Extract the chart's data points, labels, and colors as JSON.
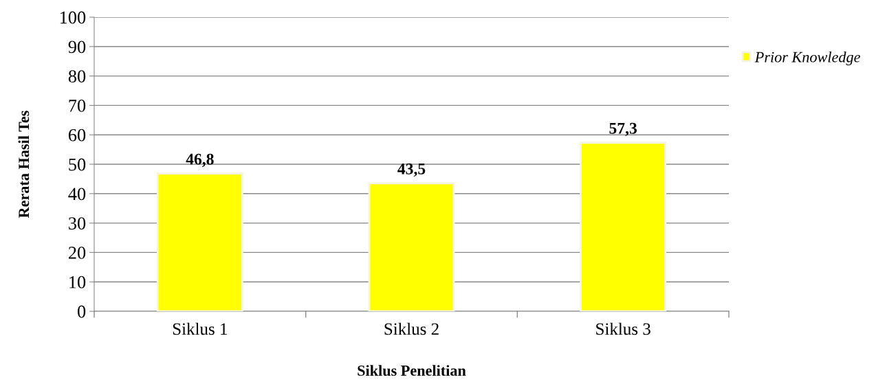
{
  "chart_data": {
    "type": "bar",
    "xlabel": "Siklus Penelitian",
    "ylabel": "Rerata Hasil Tes",
    "categories": [
      "Siklus 1",
      "Siklus 2",
      "Siklus 3"
    ],
    "series": [
      {
        "name": "Prior Knowledge",
        "color": "#ffff00",
        "values": [
          46.8,
          43.5,
          57.3
        ],
        "value_labels": [
          "46,8",
          "43,5",
          "57,3"
        ]
      }
    ],
    "ylim": [
      0,
      100
    ],
    "yticks": [
      0,
      10,
      20,
      30,
      40,
      50,
      60,
      70,
      80,
      90,
      100
    ],
    "grid": "y",
    "legend": "top right"
  }
}
